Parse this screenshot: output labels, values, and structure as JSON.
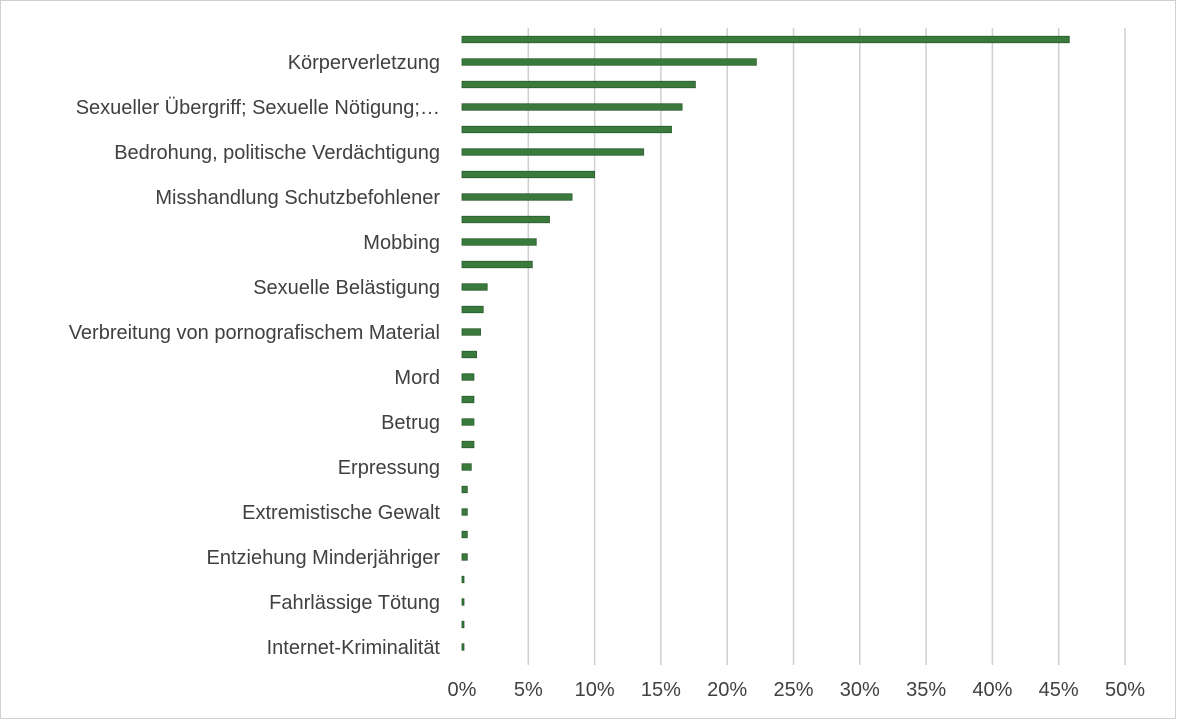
{
  "chart_data": {
    "type": "bar",
    "orientation": "horizontal",
    "categories": [
      "",
      "Körperverletzung",
      "",
      "Sexueller Übergriff; Sexuelle Nötigung;…",
      "",
      "Bedrohung, politische Verdächtigung",
      "",
      "Misshandlung Schutzbefohlener",
      "",
      "Mobbing",
      "",
      "Sexuelle Belästigung",
      "",
      "Verbreitung von pornografischem Material",
      "",
      "Mord",
      "",
      "Betrug",
      "",
      "Erpressung",
      "",
      "Extremistische Gewalt",
      "",
      "Entziehung Minderjähriger",
      "",
      "Fahrlässige Tötung",
      "",
      "Internet-Kriminalität"
    ],
    "values": [
      45.8,
      22.2,
      17.6,
      16.6,
      15.8,
      13.7,
      10.0,
      8.3,
      6.6,
      5.6,
      5.3,
      1.9,
      1.6,
      1.4,
      1.1,
      0.9,
      0.9,
      0.9,
      0.9,
      0.7,
      0.4,
      0.4,
      0.4,
      0.4,
      0.15,
      0.15,
      0.15,
      0.15
    ],
    "x_ticks": [
      "0%",
      "5%",
      "10%",
      "15%",
      "20%",
      "25%",
      "30%",
      "35%",
      "40%",
      "45%",
      "50%"
    ],
    "xlim": [
      0,
      50
    ],
    "grid": true,
    "legend": "none",
    "bar_color": "#3a7a3c",
    "title": "",
    "xlabel": "",
    "ylabel": ""
  }
}
